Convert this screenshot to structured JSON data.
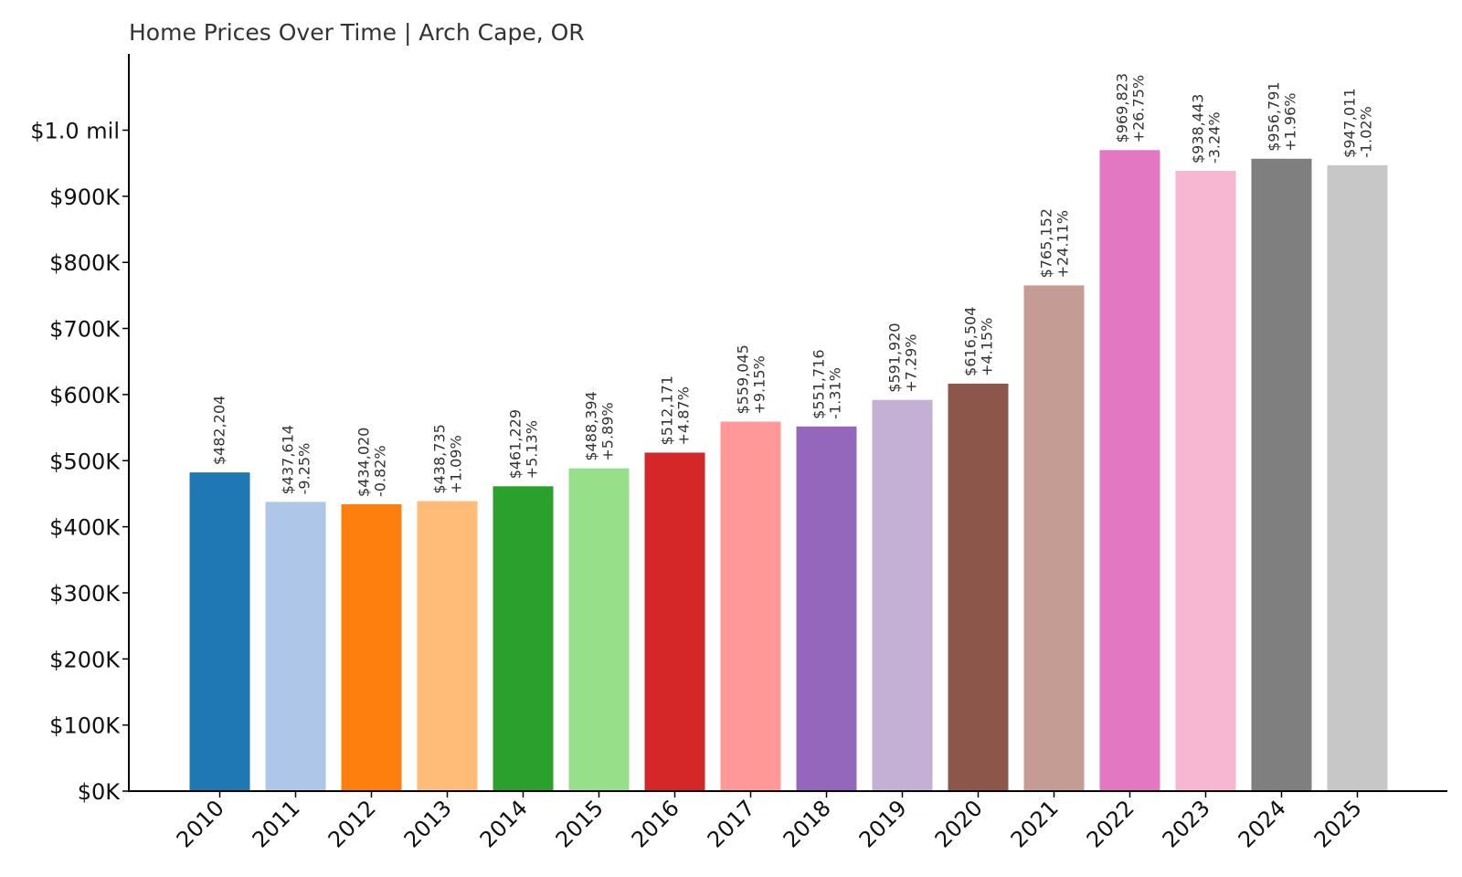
{
  "chart_data": {
    "type": "bar",
    "title": "Home Prices Over Time | Arch Cape, OR",
    "xlabel": "",
    "ylabel": "",
    "ylim": [
      0,
      1120000
    ],
    "yticks": [
      {
        "value": 0,
        "label": "$0K"
      },
      {
        "value": 100000,
        "label": "$100K"
      },
      {
        "value": 200000,
        "label": "$200K"
      },
      {
        "value": 300000,
        "label": "$300K"
      },
      {
        "value": 400000,
        "label": "$400K"
      },
      {
        "value": 500000,
        "label": "$500K"
      },
      {
        "value": 600000,
        "label": "$600K"
      },
      {
        "value": 700000,
        "label": "$700K"
      },
      {
        "value": 800000,
        "label": "$800K"
      },
      {
        "value": 900000,
        "label": "$900K"
      },
      {
        "value": 1000000,
        "label": "$1.0 mil"
      }
    ],
    "categories": [
      "2010",
      "2011",
      "2012",
      "2013",
      "2014",
      "2015",
      "2016",
      "2017",
      "2018",
      "2019",
      "2020",
      "2021",
      "2022",
      "2023",
      "2024",
      "2025"
    ],
    "values": [
      482204,
      437614,
      434020,
      438735,
      461229,
      488394,
      512171,
      559045,
      551716,
      591920,
      616504,
      765152,
      969823,
      938443,
      956791,
      947011
    ],
    "value_labels": [
      "$482,204",
      "$437,614",
      "$434,020",
      "$438,735",
      "$461,229",
      "$488,394",
      "$512,171",
      "$559,045",
      "$551,716",
      "$591,920",
      "$616,504",
      "$765,152",
      "$969,823",
      "$938,443",
      "$956,791",
      "$947,011"
    ],
    "change_labels": [
      "",
      "-9.25%",
      "-0.82%",
      "+1.09%",
      "+5.13%",
      "+5.89%",
      "+4.87%",
      "+9.15%",
      "-1.31%",
      "+7.29%",
      "+4.15%",
      "+24.11%",
      "+26.75%",
      "-3.24%",
      "+1.96%",
      "-1.02%"
    ],
    "colors": [
      "#1f77b4",
      "#aec7e8",
      "#ff7f0e",
      "#ffbb78",
      "#2ca02c",
      "#98df8a",
      "#d62728",
      "#ff9896",
      "#9467bd",
      "#c5b0d5",
      "#8c564b",
      "#c49c94",
      "#e377c2",
      "#f7b6d2",
      "#7f7f7f",
      "#c7c7c7"
    ],
    "grid": false,
    "legend": "none"
  }
}
